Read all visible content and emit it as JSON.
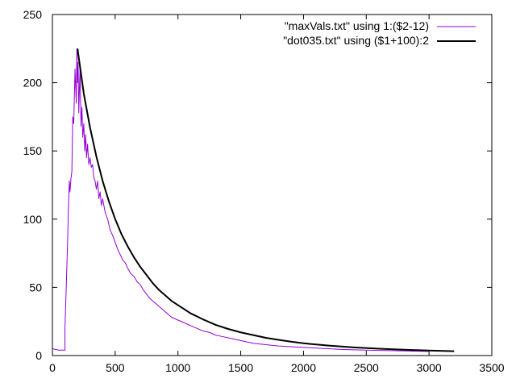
{
  "chart_data": {
    "type": "line",
    "title": "",
    "xlabel": "",
    "ylabel": "",
    "xlim": [
      0,
      3500
    ],
    "ylim": [
      0,
      250
    ],
    "xticks": [
      0,
      500,
      1000,
      1500,
      2000,
      2500,
      3000,
      3500
    ],
    "yticks": [
      0,
      50,
      100,
      150,
      200,
      250
    ],
    "grid": false,
    "legend_position": "top-right",
    "series": [
      {
        "name": "\"maxVals.txt\" using 1:($2-12)",
        "color": "#9400d3",
        "x": [
          0,
          50,
          100,
          100,
          110,
          120,
          128,
          135,
          140,
          148,
          155,
          162,
          170,
          180,
          190,
          195,
          200,
          205,
          210,
          215,
          220,
          228,
          235,
          242,
          250,
          258,
          265,
          272,
          280,
          290,
          300,
          310,
          320,
          330,
          340,
          350,
          360,
          370,
          380,
          390,
          400,
          420,
          440,
          460,
          480,
          500,
          520,
          540,
          560,
          580,
          600,
          625,
          650,
          675,
          700,
          725,
          750,
          775,
          800,
          850,
          900,
          950,
          1000,
          1050,
          1100,
          1150,
          1200,
          1250,
          1300,
          1350,
          1400,
          1450,
          1500,
          1550,
          1600,
          1700,
          1800,
          1900,
          2000,
          2100,
          2200,
          2300,
          2400,
          2500,
          2600,
          2700,
          2800,
          2900,
          3000
        ],
        "y": [
          5,
          4,
          4,
          20,
          50,
          80,
          110,
          128,
          120,
          130,
          135,
          175,
          170,
          210,
          185,
          225,
          200,
          215,
          178,
          195,
          210,
          168,
          182,
          160,
          170,
          150,
          162,
          145,
          155,
          140,
          145,
          138,
          140,
          130,
          128,
          122,
          128,
          115,
          120,
          110,
          115,
          105,
          100,
          92,
          88,
          83,
          78,
          74,
          70,
          68,
          64,
          60,
          58,
          54,
          52,
          48,
          45,
          42,
          40,
          36,
          32,
          28,
          26,
          24,
          22,
          20,
          18,
          17,
          15,
          14,
          13,
          12,
          11,
          10,
          9,
          8,
          7,
          6.5,
          6,
          5.5,
          5,
          4.5,
          4.2,
          4,
          3.8,
          3.6,
          3.4,
          3.2,
          3
        ]
      },
      {
        "name": "\"dot035.txt\" using ($1+100):2",
        "color": "#000000",
        "x": [
          200,
          250,
          300,
          350,
          400,
          450,
          500,
          550,
          600,
          650,
          700,
          750,
          800,
          850,
          900,
          950,
          1000,
          1100,
          1200,
          1300,
          1400,
          1500,
          1600,
          1700,
          1800,
          1900,
          2000,
          2200,
          2400,
          2600,
          2800,
          3000,
          3200
        ],
        "y": [
          225,
          192,
          167,
          146,
          128,
          113,
          100,
          89,
          80,
          72,
          65,
          59,
          53,
          48,
          44,
          40,
          37,
          31,
          26.5,
          22.5,
          19.5,
          17,
          15,
          13,
          11.5,
          10.2,
          9,
          7.3,
          6,
          5,
          4.3,
          3.7,
          3.2
        ]
      }
    ]
  }
}
